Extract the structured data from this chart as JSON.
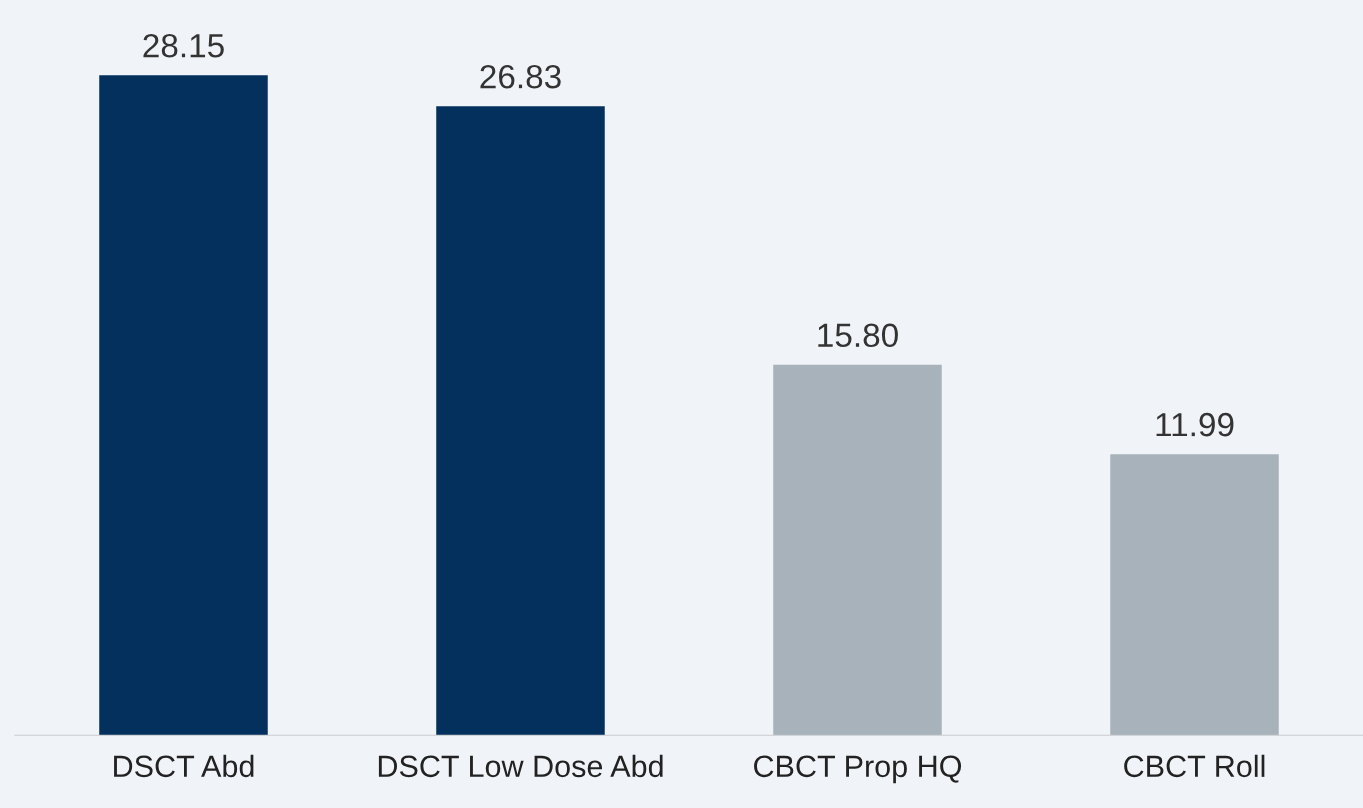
{
  "chart_data": {
    "type": "bar",
    "categories": [
      "DSCT Abd",
      "DSCT Low Dose Abd",
      "CBCT Prop HQ",
      "CBCT Roll"
    ],
    "values": [
      28.15,
      26.83,
      15.8,
      11.99
    ],
    "value_labels": [
      "28.15",
      "26.83",
      "15.80",
      "11.99"
    ],
    "colors": [
      "#03305c",
      "#03305c",
      "#a8b2bb",
      "#a8b2bb"
    ],
    "grid": false,
    "legend": false
  }
}
